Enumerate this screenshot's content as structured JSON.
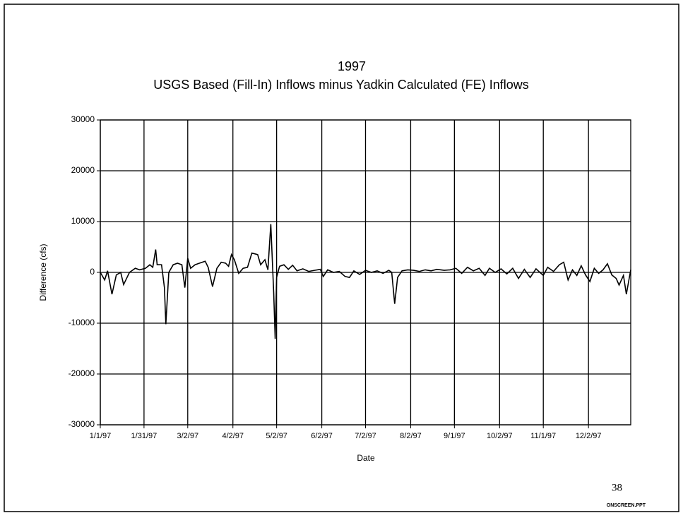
{
  "chart_data": {
    "type": "line",
    "title": "1997",
    "subtitle": "USGS Based (Fill-In) Inflows minus Yadkin Calculated (FE) Inflows",
    "x_label": "Date",
    "y_label": "Difference (cfs)",
    "color": "#000000",
    "grid": true,
    "xlim": [
      "1/1/97",
      "12/31/97"
    ],
    "xticks": [
      "1/1/97",
      "1/31/97",
      "3/2/97",
      "4/2/97",
      "5/2/97",
      "6/2/97",
      "7/2/97",
      "8/2/97",
      "9/1/97",
      "10/2/97",
      "11/1/97",
      "12/2/97"
    ],
    "ylim": [
      -30000,
      30000
    ],
    "yticks": [
      -30000,
      -20000,
      -10000,
      0,
      10000,
      20000,
      30000
    ],
    "x": [
      "1/1/97",
      "1/4/97",
      "1/6/97",
      "1/9/97",
      "1/12/97",
      "1/15/97",
      "1/17/97",
      "1/21/97",
      "1/25/97",
      "1/28/97",
      "2/1/97",
      "2/4/97",
      "2/6/97",
      "2/8/97",
      "2/9/97",
      "2/12/97",
      "2/14/97",
      "2/15/97",
      "2/17/97",
      "2/20/97",
      "2/23/97",
      "2/26/97",
      "2/28/97",
      "3/2/97",
      "3/4/97",
      "3/7/97",
      "3/10/97",
      "3/14/97",
      "3/16/97",
      "3/19/97",
      "3/22/97",
      "3/25/97",
      "3/28/97",
      "3/30/97",
      "4/1/97",
      "4/3/97",
      "4/6/97",
      "4/9/97",
      "4/12/97",
      "4/15/97",
      "4/19/97",
      "4/21/97",
      "4/24/97",
      "4/26/97",
      "4/28/97",
      "4/30/97",
      "5/1/97",
      "5/2/97",
      "5/4/97",
      "5/7/97",
      "5/10/97",
      "5/13/97",
      "5/16/97",
      "5/20/97",
      "5/24/97",
      "5/28/97",
      "6/1/97",
      "6/3/97",
      "6/6/97",
      "6/10/97",
      "6/14/97",
      "6/18/97",
      "6/21/97",
      "6/24/97",
      "6/28/97",
      "7/2/97",
      "7/6/97",
      "7/10/97",
      "7/14/97",
      "7/18/97",
      "7/20/97",
      "7/22/97",
      "7/24/97",
      "7/27/97",
      "7/31/97",
      "8/4/97",
      "8/8/97",
      "8/12/97",
      "8/16/97",
      "8/20/97",
      "8/25/97",
      "8/29/97",
      "9/2/97",
      "9/6/97",
      "9/10/97",
      "9/14/97",
      "9/18/97",
      "9/22/97",
      "9/25/97",
      "9/29/97",
      "10/3/97",
      "10/7/97",
      "10/11/97",
      "10/15/97",
      "10/19/97",
      "10/23/97",
      "10/27/97",
      "11/1/97",
      "11/4/97",
      "11/8/97",
      "11/12/97",
      "11/15/97",
      "11/18/97",
      "11/21/97",
      "11/24/97",
      "11/27/97",
      "11/30/97",
      "12/3/97",
      "12/6/97",
      "12/9/97",
      "12/12/97",
      "12/15/97",
      "12/18/97",
      "12/21/97",
      "12/23/97",
      "12/26/97",
      "12/28/97",
      "12/31/97"
    ],
    "values": [
      0,
      -1500,
      300,
      -4300,
      -500,
      0,
      -2400,
      0,
      800,
      500,
      800,
      1500,
      1000,
      4500,
      1500,
      1500,
      -3000,
      -10200,
      0,
      1500,
      1800,
      1500,
      -3000,
      2800,
      800,
      1500,
      1800,
      2200,
      1000,
      -2800,
      800,
      2000,
      1800,
      1200,
      3500,
      2500,
      -200,
      800,
      1000,
      3800,
      3500,
      1500,
      2500,
      500,
      9500,
      -4000,
      -13100,
      -1000,
      1200,
      1500,
      600,
      1400,
      300,
      700,
      200,
      400,
      600,
      -800,
      500,
      0,
      200,
      -800,
      -1000,
      300,
      -400,
      400,
      0,
      300,
      -200,
      400,
      0,
      -6200,
      -1000,
      300,
      500,
      400,
      200,
      500,
      300,
      600,
      400,
      500,
      800,
      -200,
      1000,
      300,
      800,
      -600,
      800,
      0,
      700,
      -300,
      800,
      -1200,
      600,
      -1000,
      700,
      -600,
      1000,
      200,
      1500,
      2000,
      -1500,
      500,
      -600,
      1300,
      -500,
      -1800,
      800,
      -200,
      500,
      1700,
      -500,
      -1200,
      -2500,
      -600,
      -4300,
      500
    ]
  },
  "footer": {
    "page": "38",
    "file": "ONSCREEN.PPT"
  }
}
